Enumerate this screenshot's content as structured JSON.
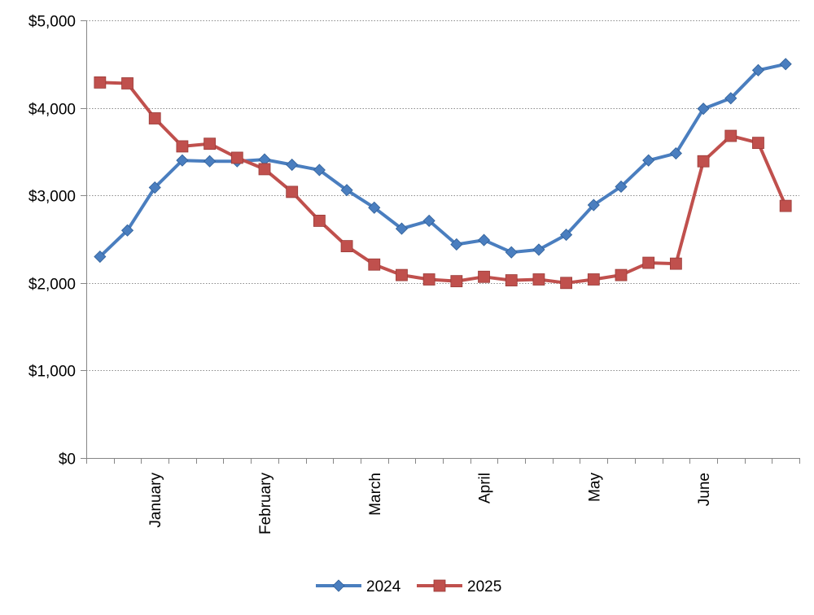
{
  "chart_data": {
    "type": "line",
    "title": "",
    "xlabel": "",
    "ylabel": "",
    "ylim": [
      0,
      5000
    ],
    "y_ticks": [
      0,
      1000,
      2000,
      3000,
      4000,
      5000
    ],
    "y_tick_labels": [
      "$0",
      "$1,000",
      "$2,000",
      "$3,000",
      "$4,000",
      "$5,000"
    ],
    "x_period_count": 26,
    "month_labels": [
      {
        "label": "January",
        "index": 2
      },
      {
        "label": "February",
        "index": 6
      },
      {
        "label": "March",
        "index": 10
      },
      {
        "label": "April",
        "index": 14
      },
      {
        "label": "May",
        "index": 18
      },
      {
        "label": "June",
        "index": 22
      }
    ],
    "grid": true,
    "legend_position": "bottom",
    "series": [
      {
        "name": "2024",
        "color": "#4a7ebf",
        "marker": "diamond",
        "values": [
          2300,
          2600,
          3090,
          3400,
          3390,
          3390,
          3410,
          3350,
          3290,
          3060,
          2860,
          2620,
          2710,
          2440,
          2490,
          2350,
          2380,
          2550,
          2890,
          3100,
          3400,
          3480,
          3990,
          4110,
          4430,
          4500
        ]
      },
      {
        "name": "2025",
        "color": "#c0504d",
        "marker": "square",
        "values": [
          4290,
          4280,
          3880,
          3560,
          3590,
          3430,
          3300,
          3040,
          2710,
          2420,
          2210,
          2090,
          2040,
          2020,
          2070,
          2030,
          2040,
          2000,
          2040,
          2090,
          2230,
          2220,
          3390,
          3680,
          3600,
          2880
        ]
      }
    ]
  }
}
